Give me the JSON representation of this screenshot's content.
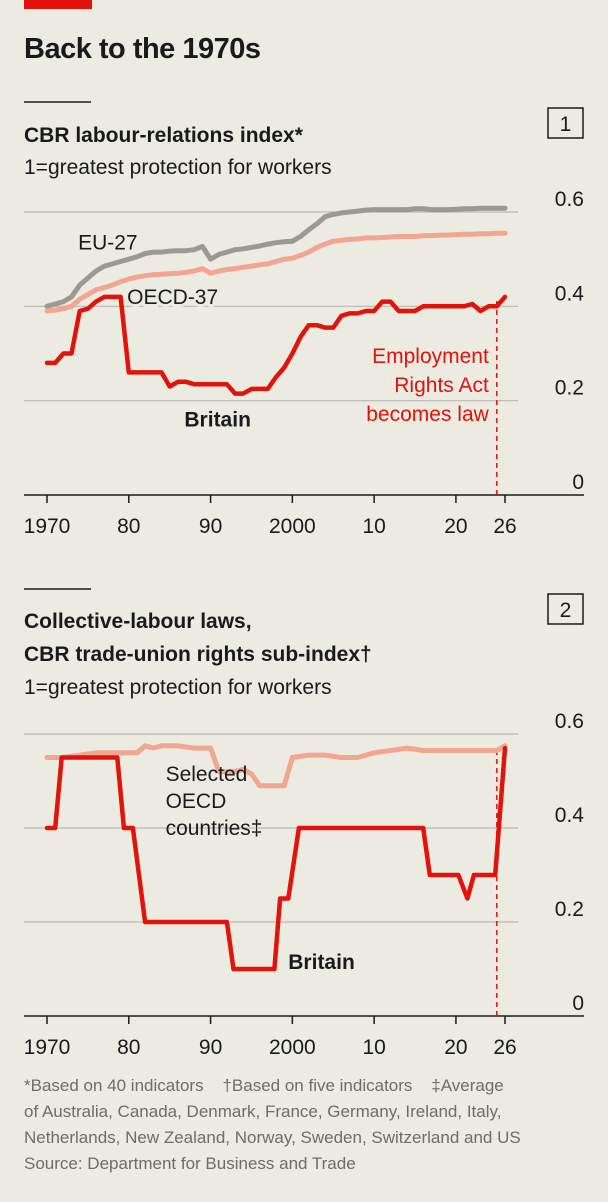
{
  "title": "Back to the 1970s",
  "accent_color": "#e3120b",
  "colors": {
    "britain": "#e3120b",
    "eu": "#9a9a91",
    "oecd": "#f2a58f",
    "annotation": "#e3120b",
    "grid": "#b9b9b0",
    "axis": "#1a1a1a"
  },
  "chart_data": [
    {
      "type": "line",
      "number": "1",
      "title": "CBR labour-relations index*",
      "subtitle": "1=greatest protection for workers",
      "ylim": [
        0,
        0.6
      ],
      "yticks": [
        0,
        0.2,
        0.4,
        0.6
      ],
      "ytick_labels": [
        "0",
        "0.2",
        "0.4",
        "0.6"
      ],
      "xlim": [
        1970,
        2026
      ],
      "xticks": [
        1970,
        1980,
        1990,
        2000,
        2010,
        2020,
        2026
      ],
      "xtick_labels": [
        "1970",
        "80",
        "90",
        "2000",
        "10",
        "20",
        "26"
      ],
      "series": [
        {
          "name": "EU-27",
          "color_key": "eu",
          "x": [
            1970,
            1971,
            1972,
            1973,
            1974,
            1975,
            1976,
            1977,
            1978,
            1979,
            1980,
            1981,
            1982,
            1983,
            1984,
            1985,
            1986,
            1987,
            1988,
            1989,
            1990,
            1991,
            1992,
            1993,
            1994,
            1995,
            1996,
            1997,
            1998,
            1999,
            2000,
            2001,
            2002,
            2003,
            2004,
            2005,
            2006,
            2007,
            2008,
            2009,
            2010,
            2011,
            2012,
            2013,
            2014,
            2015,
            2016,
            2017,
            2018,
            2019,
            2020,
            2021,
            2022,
            2023,
            2024,
            2025,
            2026
          ],
          "y": [
            0.4,
            0.405,
            0.41,
            0.42,
            0.445,
            0.46,
            0.475,
            0.485,
            0.49,
            0.495,
            0.5,
            0.505,
            0.512,
            0.515,
            0.515,
            0.517,
            0.518,
            0.518,
            0.52,
            0.527,
            0.5,
            0.51,
            0.515,
            0.52,
            0.522,
            0.525,
            0.528,
            0.532,
            0.535,
            0.537,
            0.538,
            0.548,
            0.562,
            0.575,
            0.59,
            0.595,
            0.598,
            0.6,
            0.602,
            0.604,
            0.605,
            0.605,
            0.605,
            0.605,
            0.605,
            0.607,
            0.607,
            0.605,
            0.605,
            0.605,
            0.606,
            0.607,
            0.607,
            0.608,
            0.608,
            0.608,
            0.608
          ]
        },
        {
          "name": "OECD-37",
          "color_key": "oecd",
          "x": [
            1970,
            1971,
            1972,
            1973,
            1974,
            1975,
            1976,
            1977,
            1978,
            1979,
            1980,
            1981,
            1982,
            1983,
            1984,
            1985,
            1986,
            1987,
            1988,
            1989,
            1990,
            1991,
            1992,
            1993,
            1994,
            1995,
            1996,
            1997,
            1998,
            1999,
            2000,
            2001,
            2002,
            2003,
            2004,
            2005,
            2006,
            2007,
            2008,
            2009,
            2010,
            2011,
            2012,
            2013,
            2014,
            2015,
            2016,
            2017,
            2018,
            2019,
            2020,
            2021,
            2022,
            2023,
            2024,
            2025,
            2026
          ],
          "y": [
            0.39,
            0.392,
            0.395,
            0.4,
            0.415,
            0.425,
            0.435,
            0.44,
            0.445,
            0.452,
            0.458,
            0.462,
            0.465,
            0.467,
            0.468,
            0.469,
            0.47,
            0.472,
            0.475,
            0.48,
            0.47,
            0.475,
            0.478,
            0.48,
            0.483,
            0.485,
            0.488,
            0.49,
            0.495,
            0.5,
            0.502,
            0.508,
            0.515,
            0.525,
            0.532,
            0.538,
            0.54,
            0.542,
            0.543,
            0.545,
            0.545,
            0.546,
            0.547,
            0.548,
            0.548,
            0.548,
            0.55,
            0.55,
            0.551,
            0.551,
            0.552,
            0.553,
            0.553,
            0.554,
            0.554,
            0.555,
            0.555
          ]
        },
        {
          "name": "Britain",
          "color_key": "britain",
          "x": [
            1970,
            1971,
            1972,
            1973,
            1974,
            1975,
            1976,
            1977,
            1978,
            1979,
            1980,
            1981,
            1982,
            1983,
            1984,
            1985,
            1986,
            1987,
            1988,
            1989,
            1990,
            1991,
            1992,
            1993,
            1994,
            1995,
            1996,
            1997,
            1998,
            1999,
            2000,
            2001,
            2002,
            2003,
            2004,
            2005,
            2006,
            2007,
            2008,
            2009,
            2010,
            2011,
            2012,
            2013,
            2014,
            2015,
            2016,
            2017,
            2018,
            2019,
            2020,
            2021,
            2022,
            2023,
            2024,
            2025,
            2026
          ],
          "y": [
            0.28,
            0.28,
            0.3,
            0.3,
            0.39,
            0.395,
            0.41,
            0.42,
            0.42,
            0.42,
            0.26,
            0.26,
            0.26,
            0.26,
            0.26,
            0.23,
            0.24,
            0.24,
            0.235,
            0.235,
            0.235,
            0.235,
            0.235,
            0.215,
            0.215,
            0.225,
            0.225,
            0.225,
            0.25,
            0.27,
            0.3,
            0.335,
            0.36,
            0.36,
            0.355,
            0.355,
            0.38,
            0.385,
            0.385,
            0.39,
            0.39,
            0.41,
            0.41,
            0.39,
            0.39,
            0.39,
            0.4,
            0.4,
            0.4,
            0.4,
            0.4,
            0.4,
            0.405,
            0.39,
            0.4,
            0.4,
            0.42
          ]
        }
      ],
      "labels": [
        {
          "text": "EU-27",
          "series": "EU-27",
          "x": 1973.8,
          "y": 0.52
        },
        {
          "text": "OECD-37",
          "series": "OECD-37",
          "x": 1979.8,
          "y": 0.405
        },
        {
          "text": "Britain",
          "series": "Britain",
          "x": 1986.8,
          "y": 0.145
        }
      ],
      "annotation": {
        "lines": [
          "Employment",
          "Rights Act",
          "becomes law"
        ],
        "x": 2025,
        "label_y": 0.22,
        "from_y": 0,
        "to_y": 0.415
      }
    },
    {
      "type": "line",
      "number": "2",
      "title_lines": [
        "Collective-labour laws,",
        "CBR trade-union rights sub-index†"
      ],
      "subtitle": "1=greatest protection for workers",
      "ylim": [
        0,
        0.6
      ],
      "yticks": [
        0,
        0.2,
        0.4,
        0.6
      ],
      "ytick_labels": [
        "0",
        "0.2",
        "0.4",
        "0.6"
      ],
      "xlim": [
        1970,
        2026
      ],
      "xticks": [
        1970,
        1980,
        1990,
        2000,
        2010,
        2020,
        2026
      ],
      "xtick_labels": [
        "1970",
        "80",
        "90",
        "2000",
        "10",
        "20",
        "26"
      ],
      "series": [
        {
          "name": "Selected OECD countries‡",
          "color_key": "oecd",
          "x": [
            1970,
            1972,
            1974,
            1976,
            1978,
            1980,
            1981,
            1982,
            1983,
            1984,
            1986,
            1988,
            1990,
            1991,
            1993,
            1994,
            1995,
            1996,
            1997,
            1999,
            2000,
            2002,
            2004,
            2006,
            2008,
            2010,
            2012,
            2014,
            2016,
            2018,
            2020,
            2022,
            2024,
            2025,
            2026
          ],
          "y": [
            0.55,
            0.55,
            0.555,
            0.56,
            0.56,
            0.56,
            0.56,
            0.575,
            0.57,
            0.575,
            0.575,
            0.57,
            0.57,
            0.52,
            0.52,
            0.525,
            0.515,
            0.49,
            0.49,
            0.49,
            0.55,
            0.555,
            0.555,
            0.55,
            0.55,
            0.56,
            0.565,
            0.57,
            0.565,
            0.565,
            0.565,
            0.565,
            0.565,
            0.565,
            0.575
          ]
        },
        {
          "name": "Britain",
          "color_key": "britain",
          "x": [
            1970,
            1971,
            1971.8,
            1978.6,
            1979.4,
            1980.5,
            1982,
            1992,
            1992.8,
            1997.8,
            1998.5,
            1999.5,
            2000.8,
            2016,
            2016.8,
            2020.3,
            2021.4,
            2022.2,
            2024.8,
            2026
          ],
          "y": [
            0.4,
            0.4,
            0.55,
            0.55,
            0.4,
            0.4,
            0.2,
            0.2,
            0.1,
            0.1,
            0.25,
            0.25,
            0.4,
            0.4,
            0.3,
            0.3,
            0.25,
            0.3,
            0.3,
            0.57
          ]
        }
      ],
      "labels": [
        {
          "lines": [
            "Selected",
            "OECD",
            "countries‡"
          ],
          "series": "Selected OECD countries‡",
          "x": 1984.5,
          "y": 0.5
        },
        {
          "text": "Britain",
          "series": "Britain",
          "x": 1999.5,
          "y": 0.1
        }
      ],
      "annotation": {
        "x": 2025,
        "from_y": 0,
        "to_y": 0.57
      }
    }
  ],
  "footnote": {
    "lines": [
      "*Based on 40 indicators    †Based on five indicators    ‡Average",
      "of Australia, Canada, Denmark, France, Germany, Ireland, Italy,",
      "Netherlands, New Zealand, Norway, Sweden, Switzerland and US"
    ],
    "source": "Source: Department for Business and Trade"
  }
}
